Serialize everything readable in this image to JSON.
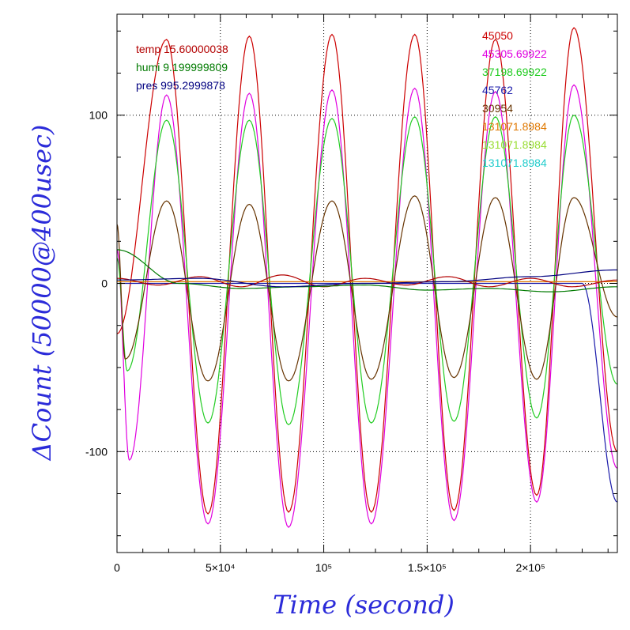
{
  "chart_data": {
    "type": "line",
    "title": "",
    "xlabel": "Time (second)",
    "ylabel": "ΔCount (50000@400usec)",
    "xlim": [
      0,
      242000
    ],
    "ylim": [
      -160,
      160
    ],
    "x_ticks": [
      {
        "value": 0,
        "label": "0"
      },
      {
        "value": 50000,
        "label": "5×10⁴"
      },
      {
        "value": 100000,
        "label": "10⁵"
      },
      {
        "value": 150000,
        "label": "1.5×10⁵"
      },
      {
        "value": 200000,
        "label": "2×10⁵"
      }
    ],
    "y_ticks": [
      {
        "value": -100,
        "label": "-100"
      },
      {
        "value": 0,
        "label": "0"
      },
      {
        "value": 100,
        "label": "100"
      }
    ],
    "grid": true,
    "legend_left": [
      {
        "label": "temp 15.60000038",
        "color": "#b30000"
      },
      {
        "label": "humi 9.199999809",
        "color": "#007a00"
      },
      {
        "label": "pres 995.2999878",
        "color": "#000080"
      }
    ],
    "legend_right": [
      {
        "label": "45050",
        "color": "#cc0000"
      },
      {
        "label": "45305.69922",
        "color": "#e000e0"
      },
      {
        "label": "37198.69922",
        "color": "#22cc22"
      },
      {
        "label": "45762",
        "color": "#1a1aaa"
      },
      {
        "label": "30954",
        "color": "#663300"
      },
      {
        "label": "131071.8984",
        "color": "#e07800"
      },
      {
        "label": "131071.8984",
        "color": "#99dd33"
      },
      {
        "label": "131071.8984",
        "color": "#22cccc"
      }
    ],
    "series": [
      {
        "name": "45050",
        "color": "#cc0000",
        "x": [
          0,
          24000,
          44000,
          64000,
          83000,
          104000,
          123000,
          144000,
          163000,
          183000,
          203000,
          221000,
          242000
        ],
        "y": [
          -30,
          145,
          -137,
          147,
          -136,
          148,
          -136,
          148,
          -135,
          145,
          -126,
          152,
          -100
        ]
      },
      {
        "name": "45305.69922",
        "color": "#e000e0",
        "x": [
          0,
          6000,
          24000,
          44000,
          64000,
          83000,
          104000,
          123000,
          144000,
          163000,
          183000,
          203000,
          221000,
          242000
        ],
        "y": [
          20,
          -105,
          112,
          -143,
          113,
          -145,
          115,
          -143,
          116,
          -141,
          114,
          -130,
          118,
          -110
        ]
      },
      {
        "name": "37198.69922",
        "color": "#22cc22",
        "x": [
          0,
          5000,
          24000,
          44000,
          64000,
          83000,
          104000,
          123000,
          144000,
          163000,
          183000,
          203000,
          221000,
          242000
        ],
        "y": [
          15,
          -52,
          97,
          -83,
          97,
          -84,
          98,
          -83,
          99,
          -82,
          99,
          -80,
          100,
          -60
        ]
      },
      {
        "name": "45762",
        "color": "#1a1aaa",
        "x": [
          0,
          18000,
          41000,
          64000,
          87000,
          110000,
          133000,
          156000,
          179000,
          202000,
          225000,
          242000
        ],
        "y": [
          0,
          0,
          0,
          0,
          0,
          0,
          0,
          0,
          0,
          0,
          0,
          -130
        ]
      },
      {
        "name": "30954",
        "color": "#663300",
        "x": [
          0,
          4000,
          24000,
          44000,
          64000,
          83000,
          104000,
          123000,
          144000,
          163000,
          183000,
          203000,
          221000,
          242000
        ],
        "y": [
          35,
          -45,
          49,
          -58,
          47,
          -58,
          49,
          -57,
          52,
          -56,
          51,
          -57,
          51,
          -20
        ]
      },
      {
        "name": "131071.8984",
        "color": "#e07800",
        "x": [
          0,
          242000
        ],
        "y": [
          1,
          1
        ]
      },
      {
        "name": "temp 15.60000038",
        "color": "#b30000",
        "x": [
          0,
          20000,
          40000,
          60000,
          80000,
          100000,
          120000,
          140000,
          160000,
          180000,
          200000,
          220000,
          242000
        ],
        "y": [
          3,
          -1,
          4,
          -2,
          5,
          -2,
          3,
          -1,
          4,
          -2,
          3,
          -2,
          2
        ]
      },
      {
        "name": "humi 9.199999809",
        "color": "#007a00",
        "x": [
          0,
          30000,
          60000,
          90000,
          120000,
          150000,
          180000,
          210000,
          242000
        ],
        "y": [
          20,
          0,
          -3,
          -2,
          -1,
          -4,
          -3,
          -5,
          -2
        ]
      },
      {
        "name": "pres 995.2999878",
        "color": "#000080",
        "x": [
          0,
          40000,
          80000,
          120000,
          160000,
          200000,
          242000
        ],
        "y": [
          2,
          3,
          -2,
          0,
          1,
          4,
          8
        ]
      }
    ]
  }
}
